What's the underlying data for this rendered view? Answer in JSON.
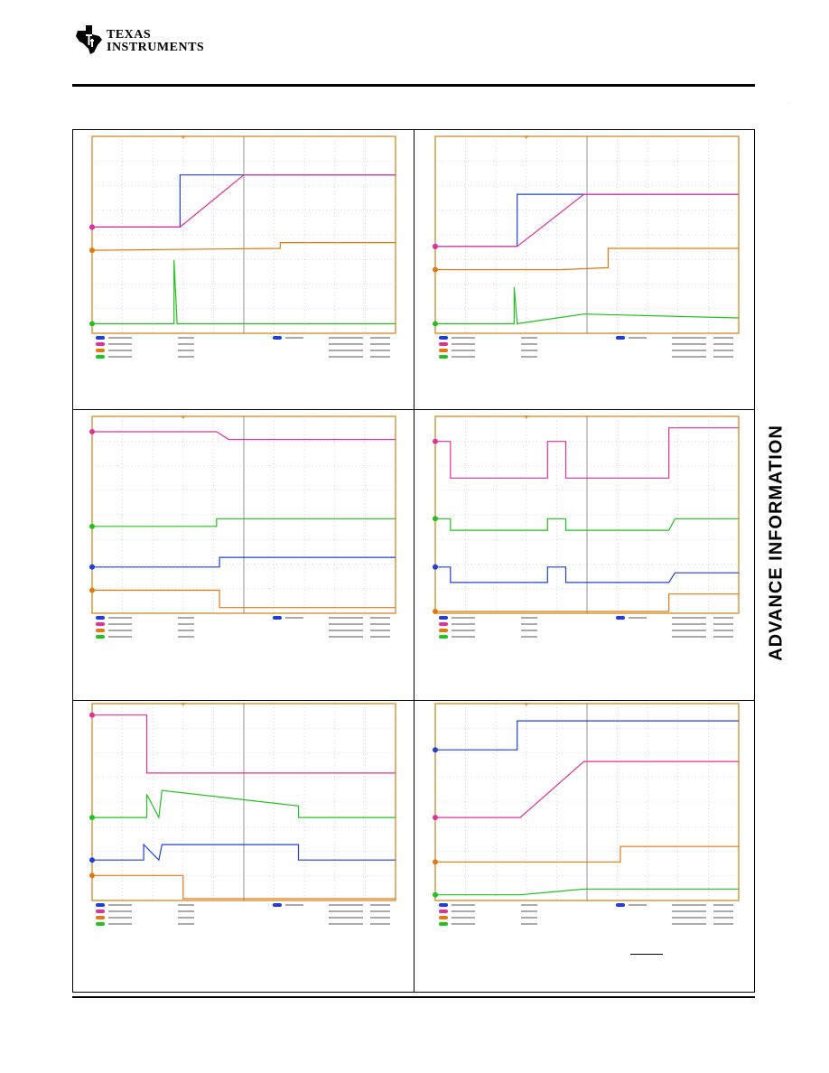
{
  "header": {
    "brand_line1": "TEXAS",
    "brand_line2": "INSTRUMENTS"
  },
  "sidebar": {
    "label": "ADVANCE INFORMATION"
  },
  "colors": {
    "ch1": "#1f3fd6",
    "ch2": "#e0309a",
    "ch3": "#e07a10",
    "ch4": "#22c21c",
    "grid_border": "#d89a40",
    "grid_dots": "#b8b8b8"
  },
  "scope_traces": [
    {
      "ch1": [
        [
          0,
          0.46
        ],
        [
          0.29,
          0.46
        ],
        [
          0.29,
          0.19
        ],
        [
          1,
          0.19
        ]
      ],
      "ch2": [
        [
          0,
          0.46
        ],
        [
          0.29,
          0.46
        ],
        [
          0.5,
          0.19
        ],
        [
          1,
          0.19
        ]
      ],
      "ch3": [
        [
          0,
          0.58
        ],
        [
          0.62,
          0.57
        ],
        [
          0.62,
          0.54
        ],
        [
          1,
          0.54
        ]
      ],
      "ch4": [
        [
          0,
          0.96
        ],
        [
          0.27,
          0.96
        ],
        [
          0.27,
          0.63
        ],
        [
          0.28,
          0.96
        ],
        [
          1,
          0.96
        ]
      ]
    },
    {
      "ch1": [
        [
          0,
          0.56
        ],
        [
          0.27,
          0.56
        ],
        [
          0.27,
          0.29
        ],
        [
          1,
          0.29
        ]
      ],
      "ch2": [
        [
          0,
          0.56
        ],
        [
          0.27,
          0.56
        ],
        [
          0.49,
          0.29
        ],
        [
          1,
          0.29
        ]
      ],
      "ch3": [
        [
          0,
          0.68
        ],
        [
          0.42,
          0.68
        ],
        [
          0.57,
          0.67
        ],
        [
          0.57,
          0.57
        ],
        [
          1,
          0.57
        ]
      ],
      "ch4": [
        [
          0,
          0.96
        ],
        [
          0.26,
          0.96
        ],
        [
          0.26,
          0.77
        ],
        [
          0.27,
          0.96
        ],
        [
          0.49,
          0.91
        ],
        [
          1,
          0.93
        ]
      ]
    },
    {
      "ch2": [
        [
          0,
          0.07
        ],
        [
          0.41,
          0.07
        ],
        [
          0.45,
          0.11
        ],
        [
          0.5,
          0.11
        ],
        [
          1,
          0.11
        ]
      ],
      "ch4": [
        [
          0,
          0.56
        ],
        [
          0.41,
          0.56
        ],
        [
          0.41,
          0.52
        ],
        [
          1,
          0.52
        ]
      ],
      "ch1": [
        [
          0,
          0.77
        ],
        [
          0.42,
          0.77
        ],
        [
          0.42,
          0.72
        ],
        [
          1,
          0.72
        ]
      ],
      "ch3": [
        [
          0,
          0.89
        ],
        [
          0.42,
          0.89
        ],
        [
          0.42,
          0.98
        ],
        [
          1,
          0.98
        ]
      ]
    },
    {
      "ch2": [
        [
          0,
          0.12
        ],
        [
          0.05,
          0.12
        ],
        [
          0.05,
          0.31
        ],
        [
          0.37,
          0.31
        ],
        [
          0.37,
          0.12
        ],
        [
          0.43,
          0.12
        ],
        [
          0.43,
          0.31
        ],
        [
          0.77,
          0.31
        ],
        [
          0.77,
          0.05
        ],
        [
          1,
          0.05
        ]
      ],
      "ch4": [
        [
          0,
          0.52
        ],
        [
          0.05,
          0.52
        ],
        [
          0.05,
          0.58
        ],
        [
          0.37,
          0.58
        ],
        [
          0.37,
          0.52
        ],
        [
          0.43,
          0.52
        ],
        [
          0.43,
          0.58
        ],
        [
          0.77,
          0.58
        ],
        [
          0.79,
          0.52
        ],
        [
          1,
          0.52
        ]
      ],
      "ch1": [
        [
          0,
          0.77
        ],
        [
          0.05,
          0.77
        ],
        [
          0.05,
          0.85
        ],
        [
          0.37,
          0.85
        ],
        [
          0.37,
          0.77
        ],
        [
          0.43,
          0.77
        ],
        [
          0.43,
          0.85
        ],
        [
          0.77,
          0.85
        ],
        [
          0.79,
          0.8
        ],
        [
          1,
          0.8
        ]
      ],
      "ch3": [
        [
          0,
          1
        ],
        [
          0.77,
          1
        ],
        [
          0.77,
          0.91
        ],
        [
          1,
          0.91
        ]
      ]
    },
    {
      "ch2": [
        [
          0,
          0.05
        ],
        [
          0.18,
          0.05
        ],
        [
          0.18,
          0.35
        ],
        [
          1,
          0.35
        ]
      ],
      "ch4": [
        [
          0,
          0.58
        ],
        [
          0.18,
          0.58
        ],
        [
          0.18,
          0.46
        ],
        [
          0.22,
          0.58
        ],
        [
          0.23,
          0.44
        ],
        [
          0.68,
          0.52
        ],
        [
          0.68,
          0.58
        ],
        [
          1,
          0.58
        ]
      ],
      "ch1": [
        [
          0,
          0.8
        ],
        [
          0.17,
          0.8
        ],
        [
          0.17,
          0.72
        ],
        [
          0.22,
          0.8
        ],
        [
          0.23,
          0.72
        ],
        [
          0.68,
          0.72
        ],
        [
          0.68,
          0.8
        ],
        [
          1,
          0.8
        ]
      ],
      "ch3": [
        [
          0,
          0.88
        ],
        [
          0.3,
          0.88
        ],
        [
          0.3,
          1
        ],
        [
          1,
          1
        ]
      ]
    },
    {
      "ch1": [
        [
          0,
          0.23
        ],
        [
          0.27,
          0.23
        ],
        [
          0.27,
          0.08
        ],
        [
          1,
          0.08
        ]
      ],
      "ch2": [
        [
          0,
          0.58
        ],
        [
          0.28,
          0.58
        ],
        [
          0.49,
          0.29
        ],
        [
          1,
          0.29
        ]
      ],
      "ch3": [
        [
          0,
          0.81
        ],
        [
          0.61,
          0.81
        ],
        [
          0.61,
          0.73
        ],
        [
          1,
          0.73
        ]
      ],
      "ch4": [
        [
          0,
          0.98
        ],
        [
          0.28,
          0.98
        ],
        [
          0.49,
          0.95
        ],
        [
          1,
          0.95
        ]
      ]
    }
  ]
}
